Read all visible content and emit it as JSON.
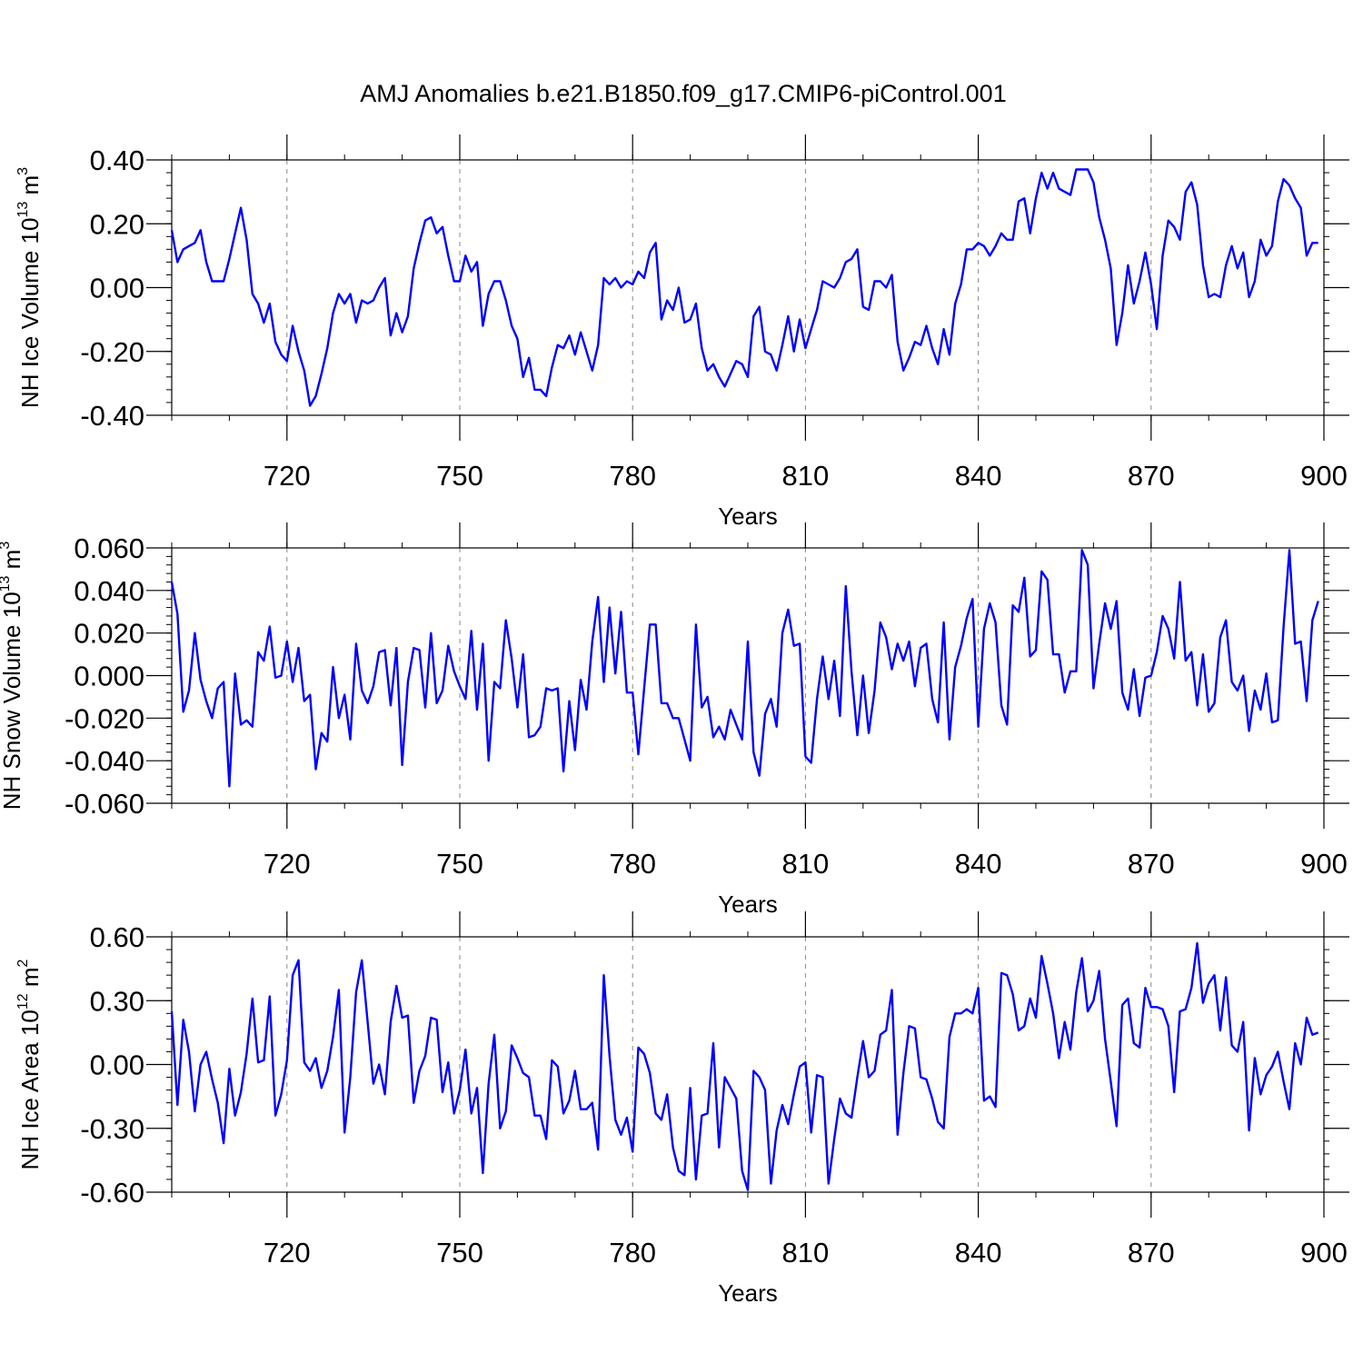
{
  "figure": {
    "title": "AMJ Anomalies b.e21.B1850.f09_g17.CMIP6-piControl.001",
    "line_color": "#0000ff",
    "frame_color": "#000000",
    "grid_color": "#888888"
  },
  "chart_data": [
    {
      "type": "line",
      "ylabel": "NH Ice Volume 10¹³ m³",
      "ylabel_parts": {
        "base": "NH Ice Volume 10",
        "exp1": "13",
        "unit": " m",
        "exp2": "3"
      },
      "xlabel": "Years",
      "xlim": [
        700,
        900
      ],
      "ylim": [
        -0.4,
        0.4
      ],
      "xticks": [
        720,
        750,
        780,
        810,
        840,
        870,
        900
      ],
      "xtick_labels": [
        "720",
        "750",
        "780",
        "810",
        "840",
        "870",
        "900"
      ],
      "yticks": [
        -0.4,
        -0.2,
        0.0,
        0.2,
        0.4
      ],
      "ytick_labels": [
        "-0.40",
        "-0.20",
        "0.00",
        "0.20",
        "0.40"
      ],
      "grid": "vertical dashed at x ticks",
      "x_start": 700,
      "values": [
        0.18,
        0.08,
        0.12,
        0.13,
        0.14,
        0.18,
        0.08,
        0.02,
        0.02,
        0.02,
        0.09,
        0.17,
        0.25,
        0.15,
        -0.02,
        -0.05,
        -0.11,
        -0.05,
        -0.17,
        -0.21,
        -0.23,
        -0.12,
        -0.2,
        -0.26,
        -0.37,
        -0.34,
        -0.27,
        -0.19,
        -0.08,
        -0.02,
        -0.05,
        -0.02,
        -0.11,
        -0.04,
        -0.05,
        -0.04,
        0.0,
        0.03,
        -0.15,
        -0.08,
        -0.14,
        -0.09,
        0.06,
        0.14,
        0.21,
        0.22,
        0.17,
        0.19,
        0.1,
        0.02,
        0.02,
        0.1,
        0.05,
        0.08,
        -0.12,
        -0.02,
        0.02,
        0.02,
        -0.04,
        -0.12,
        -0.16,
        -0.28,
        -0.22,
        -0.32,
        -0.32,
        -0.34,
        -0.25,
        -0.18,
        -0.19,
        -0.15,
        -0.21,
        -0.14,
        -0.2,
        -0.26,
        -0.18,
        0.03,
        0.01,
        0.03,
        0.0,
        0.02,
        0.01,
        0.05,
        0.03,
        0.11,
        0.14,
        -0.1,
        -0.04,
        -0.07,
        0.0,
        -0.11,
        -0.1,
        -0.05,
        -0.19,
        -0.26,
        -0.24,
        -0.28,
        -0.31,
        -0.27,
        -0.23,
        -0.24,
        -0.28,
        -0.09,
        -0.06,
        -0.2,
        -0.21,
        -0.26,
        -0.18,
        -0.09,
        -0.2,
        -0.1,
        -0.19,
        -0.13,
        -0.07,
        0.02,
        0.01,
        0.0,
        0.03,
        0.08,
        0.09,
        0.12,
        -0.06,
        -0.07,
        0.02,
        0.02,
        0.0,
        0.04,
        -0.17,
        -0.26,
        -0.22,
        -0.17,
        -0.18,
        -0.12,
        -0.19,
        -0.24,
        -0.13,
        -0.21,
        -0.05,
        0.01,
        0.12,
        0.12,
        0.14,
        0.13,
        0.1,
        0.13,
        0.17,
        0.15,
        0.15,
        0.27,
        0.28,
        0.17,
        0.28,
        0.36,
        0.31,
        0.36,
        0.31,
        0.3,
        0.29,
        0.37,
        0.37,
        0.37,
        0.33,
        0.22,
        0.15,
        0.06,
        -0.18,
        -0.08,
        0.07,
        -0.05,
        0.02,
        0.11,
        0.01,
        -0.13,
        0.1,
        0.21,
        0.19,
        0.15,
        0.3,
        0.33,
        0.26,
        0.07,
        -0.03,
        -0.02,
        -0.03,
        0.07,
        0.13,
        0.06,
        0.11,
        -0.03,
        0.02,
        0.15,
        0.1,
        0.13,
        0.27,
        0.34,
        0.32,
        0.28,
        0.25,
        0.1,
        0.14,
        0.14
      ]
    },
    {
      "type": "line",
      "ylabel": "NH Snow Volume 10¹³ m³",
      "ylabel_parts": {
        "base": "NH Snow Volume 10",
        "exp1": "13",
        "unit": " m",
        "exp2": "3"
      },
      "xlabel": "Years",
      "xlim": [
        700,
        900
      ],
      "ylim": [
        -0.06,
        0.06
      ],
      "xticks": [
        720,
        750,
        780,
        810,
        840,
        870,
        900
      ],
      "xtick_labels": [
        "720",
        "750",
        "780",
        "810",
        "840",
        "870",
        "900"
      ],
      "yticks": [
        -0.06,
        -0.04,
        -0.02,
        0.0,
        0.02,
        0.04,
        0.06
      ],
      "ytick_labels": [
        "-0.060",
        "-0.040",
        "-0.020",
        "0.000",
        "0.020",
        "0.040",
        "0.060"
      ],
      "grid": "vertical dashed at x ticks",
      "x_start": 700,
      "values": [
        0.044,
        0.029,
        -0.017,
        -0.007,
        0.02,
        -0.002,
        -0.012,
        -0.02,
        -0.006,
        -0.003,
        -0.052,
        0.001,
        -0.023,
        -0.021,
        -0.024,
        0.011,
        0.007,
        0.023,
        -0.001,
        0.0,
        0.016,
        -0.003,
        0.013,
        -0.012,
        -0.009,
        -0.044,
        -0.027,
        -0.031,
        0.004,
        -0.02,
        -0.009,
        -0.03,
        0.015,
        -0.007,
        -0.013,
        -0.005,
        0.011,
        0.012,
        -0.014,
        0.013,
        -0.042,
        -0.003,
        0.013,
        0.012,
        -0.015,
        0.02,
        -0.013,
        -0.007,
        0.014,
        0.002,
        -0.005,
        -0.011,
        0.021,
        -0.016,
        0.015,
        -0.04,
        -0.003,
        -0.006,
        0.026,
        0.008,
        -0.015,
        0.01,
        -0.029,
        -0.028,
        -0.024,
        -0.006,
        -0.007,
        -0.006,
        -0.045,
        -0.012,
        -0.035,
        -0.002,
        -0.016,
        0.016,
        0.037,
        -0.003,
        0.032,
        0.001,
        0.03,
        -0.008,
        -0.008,
        -0.037,
        -0.006,
        0.024,
        0.024,
        -0.013,
        -0.013,
        -0.02,
        -0.02,
        -0.03,
        -0.04,
        0.024,
        -0.015,
        -0.01,
        -0.029,
        -0.024,
        -0.03,
        -0.016,
        -0.023,
        -0.03,
        0.016,
        -0.036,
        -0.047,
        -0.018,
        -0.011,
        -0.024,
        0.02,
        0.031,
        0.014,
        0.015,
        -0.038,
        -0.041,
        -0.011,
        0.009,
        -0.011,
        0.007,
        -0.019,
        0.042,
        0.002,
        -0.028,
        0.0,
        -0.027,
        -0.007,
        0.025,
        0.018,
        0.003,
        0.015,
        0.007,
        0.016,
        -0.005,
        0.013,
        0.015,
        -0.011,
        -0.022,
        0.025,
        -0.03,
        0.004,
        0.014,
        0.027,
        0.036,
        -0.024,
        0.022,
        0.034,
        0.025,
        -0.014,
        -0.023,
        0.033,
        0.03,
        0.046,
        0.009,
        0.012,
        0.049,
        0.045,
        0.01,
        0.01,
        -0.008,
        0.002,
        0.002,
        0.059,
        0.052,
        -0.006,
        0.015,
        0.034,
        0.022,
        0.035,
        -0.008,
        -0.016,
        0.003,
        -0.019,
        -0.001,
        0.0,
        0.011,
        0.028,
        0.022,
        0.008,
        0.044,
        0.007,
        0.011,
        -0.014,
        0.01,
        -0.017,
        -0.013,
        0.018,
        0.026,
        -0.003,
        -0.007,
        0.0,
        -0.026,
        -0.007,
        -0.016,
        0.001,
        -0.022,
        -0.021,
        0.023,
        0.059,
        0.015,
        0.016,
        -0.012,
        0.026,
        0.035
      ]
    },
    {
      "type": "line",
      "ylabel": "NH Ice Area 10¹² m²",
      "ylabel_parts": {
        "base": "NH Ice Area 10",
        "exp1": "12",
        "unit": " m",
        "exp2": "2"
      },
      "xlabel": "Years",
      "xlim": [
        700,
        900
      ],
      "ylim": [
        -0.6,
        0.6
      ],
      "xticks": [
        720,
        750,
        780,
        810,
        840,
        870,
        900
      ],
      "xtick_labels": [
        "720",
        "750",
        "780",
        "810",
        "840",
        "870",
        "900"
      ],
      "yticks": [
        -0.6,
        -0.3,
        0.0,
        0.3,
        0.6
      ],
      "ytick_labels": [
        "-0.60",
        "-0.30",
        "0.00",
        "0.30",
        "0.60"
      ],
      "grid": "vertical dashed at x ticks",
      "x_start": 700,
      "values": [
        0.25,
        -0.19,
        0.21,
        0.06,
        -0.22,
        0.0,
        0.06,
        -0.07,
        -0.18,
        -0.37,
        -0.02,
        -0.24,
        -0.13,
        0.05,
        0.31,
        0.01,
        0.02,
        0.32,
        -0.24,
        -0.14,
        0.02,
        0.42,
        0.49,
        0.01,
        -0.03,
        0.03,
        -0.11,
        -0.03,
        0.13,
        0.35,
        -0.32,
        -0.06,
        0.34,
        0.49,
        0.2,
        -0.09,
        0.0,
        -0.14,
        0.2,
        0.37,
        0.22,
        0.23,
        -0.18,
        -0.03,
        0.04,
        0.22,
        0.21,
        -0.13,
        0.01,
        -0.23,
        -0.12,
        0.07,
        -0.23,
        -0.11,
        -0.51,
        -0.09,
        0.14,
        -0.3,
        -0.22,
        0.09,
        0.03,
        -0.04,
        -0.06,
        -0.24,
        -0.24,
        -0.35,
        0.02,
        -0.01,
        -0.23,
        -0.17,
        -0.03,
        -0.21,
        -0.21,
        -0.18,
        -0.4,
        0.42,
        0.04,
        -0.26,
        -0.33,
        -0.25,
        -0.41,
        0.08,
        0.05,
        -0.04,
        -0.23,
        -0.26,
        -0.14,
        -0.39,
        -0.5,
        -0.52,
        -0.11,
        -0.54,
        -0.24,
        -0.23,
        0.1,
        -0.39,
        -0.06,
        -0.11,
        -0.16,
        -0.5,
        -0.59,
        -0.03,
        -0.06,
        -0.12,
        -0.56,
        -0.31,
        -0.19,
        -0.28,
        -0.14,
        -0.01,
        0.01,
        -0.32,
        -0.05,
        -0.06,
        -0.56,
        -0.35,
        -0.16,
        -0.23,
        -0.25,
        -0.06,
        0.11,
        -0.06,
        -0.03,
        0.14,
        0.16,
        0.35,
        -0.33,
        -0.04,
        0.18,
        0.17,
        -0.06,
        -0.07,
        -0.16,
        -0.27,
        -0.3,
        0.13,
        0.24,
        0.24,
        0.26,
        0.24,
        0.36,
        -0.17,
        -0.15,
        -0.2,
        0.43,
        0.42,
        0.33,
        0.16,
        0.18,
        0.31,
        0.22,
        0.51,
        0.38,
        0.24,
        0.03,
        0.2,
        0.07,
        0.34,
        0.5,
        0.25,
        0.3,
        0.44,
        0.12,
        -0.08,
        -0.29,
        0.28,
        0.31,
        0.1,
        0.08,
        0.36,
        0.27,
        0.27,
        0.26,
        0.18,
        -0.13,
        0.25,
        0.26,
        0.36,
        0.57,
        0.29,
        0.38,
        0.42,
        0.16,
        0.41,
        0.09,
        0.06,
        0.2,
        -0.31,
        0.03,
        -0.14,
        -0.05,
        -0.01,
        0.06,
        -0.08,
        -0.21,
        0.1,
        0.0,
        0.22,
        0.14,
        0.15
      ]
    }
  ]
}
